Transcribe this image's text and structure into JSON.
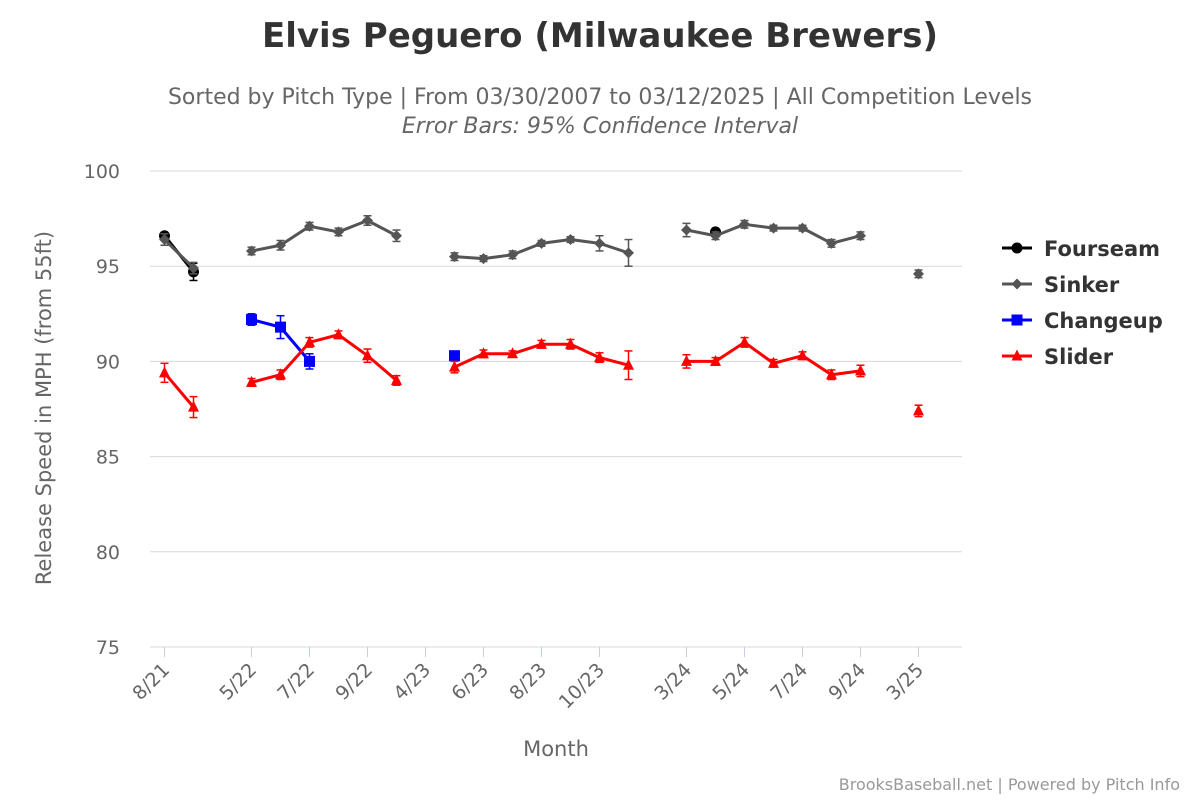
{
  "chart_data": {
    "type": "line",
    "title": "Elvis Peguero (Milwaukee Brewers)",
    "subtitle": "Sorted by Pitch Type | From 03/30/2007 to 03/12/2025 | All Competition Levels",
    "subtitle2": "Error Bars: 95% Confidence Interval",
    "xlabel": "Month",
    "ylabel": "Release Speed in MPH (from 55ft)",
    "ylim": [
      75,
      100
    ],
    "yticks": [
      75,
      80,
      85,
      90,
      95,
      100
    ],
    "x_slots": 28,
    "x_tick_labels": [
      {
        "slot": 0,
        "label": "8/21"
      },
      {
        "slot": 3,
        "label": "5/22"
      },
      {
        "slot": 5,
        "label": "7/22"
      },
      {
        "slot": 7,
        "label": "9/22"
      },
      {
        "slot": 9,
        "label": "4/23"
      },
      {
        "slot": 11,
        "label": "6/23"
      },
      {
        "slot": 13,
        "label": "8/23"
      },
      {
        "slot": 15,
        "label": "10/23"
      },
      {
        "slot": 18,
        "label": "3/24"
      },
      {
        "slot": 20,
        "label": "5/24"
      },
      {
        "slot": 22,
        "label": "7/24"
      },
      {
        "slot": 24,
        "label": "9/24"
      },
      {
        "slot": 26,
        "label": "3/25"
      }
    ],
    "legend_position": "right",
    "grid": true,
    "series": [
      {
        "name": "Fourseam",
        "color": "#000000",
        "marker": "circle",
        "points": [
          {
            "slot": 0,
            "y": 96.6,
            "err": 0.15
          },
          {
            "slot": 1,
            "y": 94.7,
            "err": 0.45
          },
          {
            "slot": 19,
            "y": 96.8,
            "err": 0
          }
        ]
      },
      {
        "name": "Sinker",
        "color": "#555555",
        "marker": "diamond",
        "points": [
          {
            "slot": 0,
            "y": 96.4,
            "err": 0.3
          },
          {
            "slot": 1,
            "y": 94.9,
            "err": 0.3
          },
          {
            "slot": 3,
            "y": 95.8,
            "err": 0.2
          },
          {
            "slot": 4,
            "y": 96.1,
            "err": 0.25
          },
          {
            "slot": 5,
            "y": 97.1,
            "err": 0.2
          },
          {
            "slot": 6,
            "y": 96.8,
            "err": 0.2
          },
          {
            "slot": 7,
            "y": 97.4,
            "err": 0.25
          },
          {
            "slot": 8,
            "y": 96.6,
            "err": 0.3
          },
          {
            "slot": 10,
            "y": 95.5,
            "err": 0.2
          },
          {
            "slot": 11,
            "y": 95.4,
            "err": 0.15
          },
          {
            "slot": 12,
            "y": 95.6,
            "err": 0.2
          },
          {
            "slot": 13,
            "y": 96.2,
            "err": 0.15
          },
          {
            "slot": 14,
            "y": 96.4,
            "err": 0.15
          },
          {
            "slot": 15,
            "y": 96.2,
            "err": 0.4
          },
          {
            "slot": 16,
            "y": 95.7,
            "err": 0.7
          },
          {
            "slot": 18,
            "y": 96.9,
            "err": 0.35
          },
          {
            "slot": 19,
            "y": 96.6,
            "err": 0.2
          },
          {
            "slot": 20,
            "y": 97.2,
            "err": 0.2
          },
          {
            "slot": 21,
            "y": 97.0,
            "err": 0.15
          },
          {
            "slot": 22,
            "y": 97.0,
            "err": 0.15
          },
          {
            "slot": 23,
            "y": 96.2,
            "err": 0.2
          },
          {
            "slot": 24,
            "y": 96.6,
            "err": 0.2
          },
          {
            "slot": 26,
            "y": 94.6,
            "err": 0.2
          }
        ]
      },
      {
        "name": "Changeup",
        "color": "#0000ff",
        "marker": "square",
        "points": [
          {
            "slot": 3,
            "y": 92.2,
            "err": 0.3
          },
          {
            "slot": 4,
            "y": 91.8,
            "err": 0.6
          },
          {
            "slot": 5,
            "y": 90.0,
            "err": 0.4
          },
          {
            "slot": 10,
            "y": 90.3,
            "err": 0
          }
        ]
      },
      {
        "name": "Slider",
        "color": "#ff0000",
        "marker": "triangle",
        "points": [
          {
            "slot": 0,
            "y": 89.4,
            "err": 0.5
          },
          {
            "slot": 1,
            "y": 87.6,
            "err": 0.55
          },
          {
            "slot": 3,
            "y": 88.9,
            "err": 0.2
          },
          {
            "slot": 4,
            "y": 89.3,
            "err": 0.25
          },
          {
            "slot": 5,
            "y": 91.0,
            "err": 0.25
          },
          {
            "slot": 6,
            "y": 91.4,
            "err": 0.2
          },
          {
            "slot": 7,
            "y": 90.3,
            "err": 0.35
          },
          {
            "slot": 8,
            "y": 89.0,
            "err": 0.25
          },
          {
            "slot": 10,
            "y": 89.7,
            "err": 0.3
          },
          {
            "slot": 11,
            "y": 90.4,
            "err": 0.2
          },
          {
            "slot": 12,
            "y": 90.4,
            "err": 0.15
          },
          {
            "slot": 13,
            "y": 90.9,
            "err": 0.2
          },
          {
            "slot": 14,
            "y": 90.9,
            "err": 0.25
          },
          {
            "slot": 15,
            "y": 90.2,
            "err": 0.25
          },
          {
            "slot": 16,
            "y": 89.8,
            "err": 0.75
          },
          {
            "slot": 18,
            "y": 90.0,
            "err": 0.35
          },
          {
            "slot": 19,
            "y": 90.0,
            "err": 0.2
          },
          {
            "slot": 20,
            "y": 91.0,
            "err": 0.25
          },
          {
            "slot": 21,
            "y": 89.9,
            "err": 0.2
          },
          {
            "slot": 22,
            "y": 90.3,
            "err": 0.2
          },
          {
            "slot": 23,
            "y": 89.3,
            "err": 0.25
          },
          {
            "slot": 24,
            "y": 89.5,
            "err": 0.3
          },
          {
            "slot": 26,
            "y": 87.4,
            "err": 0.3
          }
        ]
      }
    ]
  },
  "credits": "BrooksBaseball.net | Powered by Pitch Info"
}
